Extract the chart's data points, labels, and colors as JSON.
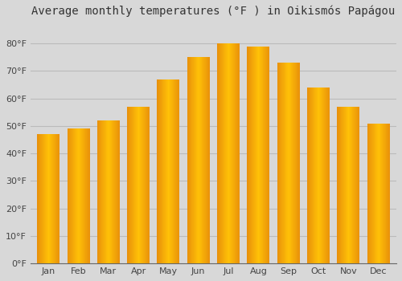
{
  "title": "Average monthly temperatures (°F ) in Oikismós Papágou",
  "months": [
    "Jan",
    "Feb",
    "Mar",
    "Apr",
    "May",
    "Jun",
    "Jul",
    "Aug",
    "Sep",
    "Oct",
    "Nov",
    "Dec"
  ],
  "temperatures": [
    47,
    49,
    52,
    57,
    67,
    75,
    80,
    79,
    73,
    64,
    57,
    51
  ],
  "ylim": [
    0,
    88
  ],
  "yticks": [
    0,
    10,
    20,
    30,
    40,
    50,
    60,
    70,
    80
  ],
  "ytick_labels": [
    "0°F",
    "10°F",
    "20°F",
    "30°F",
    "40°F",
    "50°F",
    "60°F",
    "70°F",
    "80°F"
  ],
  "bar_color_left": "#E8900A",
  "bar_color_center": "#FFC107",
  "bar_color_right": "#E8900A",
  "background_color": "#d8d8d8",
  "title_fontsize": 10,
  "tick_fontsize": 8,
  "grid_color": "#bbbbbb",
  "bar_width": 0.75,
  "figwidth": 5.0,
  "figheight": 3.5,
  "dpi": 100
}
